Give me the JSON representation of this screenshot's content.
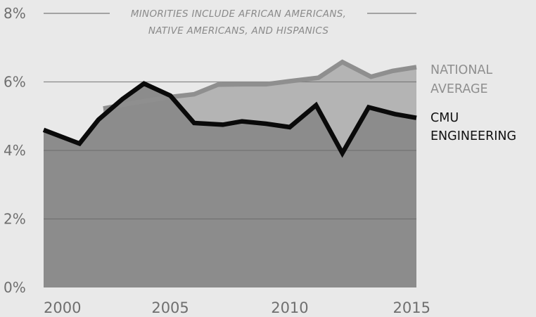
{
  "chart_data": {
    "type": "line",
    "title": "",
    "xlabel": "",
    "ylabel": "",
    "xlim": [
      1999.7,
      2015.3
    ],
    "ylim": [
      0,
      8
    ],
    "x_ticks": [
      "2000",
      "2005",
      "2010",
      "2015"
    ],
    "y_ticks": [
      "0%",
      "2%",
      "4%",
      "6%",
      "8%"
    ],
    "y_tick_values": [
      0,
      2,
      4,
      6,
      8
    ],
    "annotation": [
      "MINORITIES INCLUDE AFRICAN AMERICANS,",
      "NATIVE AMERICANS, AND HISPANICS"
    ],
    "grid": true,
    "colors": {
      "background": "#e9e9e9",
      "national_area": "#b4b4b4",
      "national_line": "#8f8f8f",
      "cmu_area": "#8c8c8c",
      "cmu_line": "#0a0a0a",
      "grid": "#6a6a6a"
    },
    "series": [
      {
        "name": "CMU ENGINEERING",
        "label_lines": [
          "CMU",
          "ENGINEERING"
        ],
        "x": [
          1999.7,
          2001.2,
          2002,
          2003,
          2003.9,
          2005,
          2006,
          2007.2,
          2008,
          2009,
          2010,
          2011.1,
          2012.2,
          2013.3,
          2014.4,
          2015.3
        ],
        "values": [
          4.6,
          4.2,
          4.9,
          5.5,
          5.95,
          5.6,
          4.8,
          4.75,
          4.85,
          4.78,
          4.68,
          5.32,
          3.92,
          5.26,
          5.06,
          4.95
        ]
      },
      {
        "name": "NATIONAL AVERAGE",
        "label_lines": [
          "NATIONAL",
          "AVERAGE"
        ],
        "x": [
          2002.2,
          2003.4,
          2005,
          2006,
          2007,
          2008,
          2009,
          2010,
          2011.2,
          2012.2,
          2013.4,
          2014.3,
          2015.3
        ],
        "values": [
          5.22,
          5.38,
          5.56,
          5.64,
          5.92,
          5.93,
          5.93,
          6.02,
          6.12,
          6.58,
          6.15,
          6.32,
          6.43
        ]
      }
    ]
  }
}
